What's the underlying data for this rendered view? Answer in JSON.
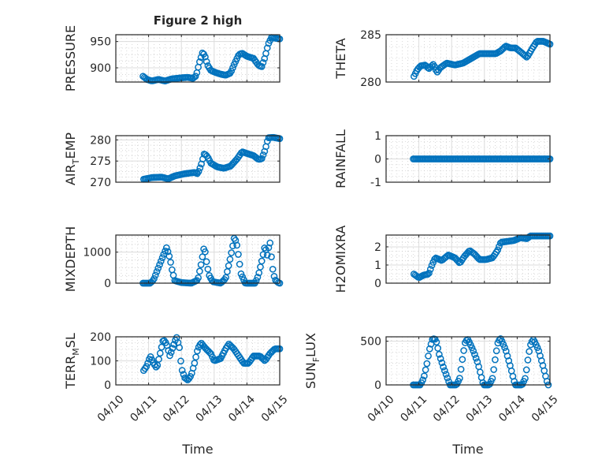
{
  "figure_title": "Figure 2 high",
  "chart_data": [
    {
      "type": "scatter",
      "ylabel": "PRESSURE",
      "title": "Figure 2 high",
      "xlabel": "",
      "ylim": [
        873,
        963
      ],
      "yticks": [
        900,
        950
      ],
      "xlim": [
        0,
        5
      ],
      "xtick_labels": [
        "04/10",
        "04/11",
        "04/12",
        "04/13",
        "04/14",
        "04/15"
      ],
      "grid": true,
      "keypoints": [
        [
          0.83,
          884
        ],
        [
          0.95,
          878
        ],
        [
          1.1,
          875
        ],
        [
          1.3,
          878
        ],
        [
          1.5,
          875
        ],
        [
          1.7,
          879
        ],
        [
          2.0,
          881
        ],
        [
          2.2,
          882
        ],
        [
          2.35,
          880
        ],
        [
          2.45,
          885
        ],
        [
          2.55,
          910
        ],
        [
          2.65,
          930
        ],
        [
          2.72,
          922
        ],
        [
          2.8,
          905
        ],
        [
          2.9,
          895
        ],
        [
          3.05,
          891
        ],
        [
          3.2,
          888
        ],
        [
          3.35,
          886
        ],
        [
          3.5,
          890
        ],
        [
          3.6,
          905
        ],
        [
          3.75,
          925
        ],
        [
          3.85,
          928
        ],
        [
          4.0,
          922
        ],
        [
          4.2,
          918
        ],
        [
          4.35,
          905
        ],
        [
          4.45,
          902
        ],
        [
          4.55,
          920
        ],
        [
          4.65,
          945
        ],
        [
          4.75,
          958
        ],
        [
          4.9,
          956
        ],
        [
          5.0,
          955
        ]
      ]
    },
    {
      "type": "scatter",
      "ylabel": "THETA",
      "ylim": [
        280,
        285
      ],
      "yticks": [
        280,
        285
      ],
      "xlim": [
        0,
        5
      ],
      "xtick_labels": [
        "04/10",
        "04/11",
        "04/12",
        "04/13",
        "04/14",
        "04/15"
      ],
      "grid": true,
      "keypoints": [
        [
          0.85,
          280.6
        ],
        [
          0.95,
          281.3
        ],
        [
          1.05,
          281.7
        ],
        [
          1.2,
          281.8
        ],
        [
          1.3,
          281.4
        ],
        [
          1.45,
          281.9
        ],
        [
          1.55,
          281.0
        ],
        [
          1.65,
          281.5
        ],
        [
          1.85,
          282.0
        ],
        [
          2.1,
          281.8
        ],
        [
          2.35,
          282.0
        ],
        [
          2.6,
          282.5
        ],
        [
          2.85,
          283.0
        ],
        [
          3.1,
          283.0
        ],
        [
          3.35,
          283.0
        ],
        [
          3.5,
          283.3
        ],
        [
          3.65,
          283.8
        ],
        [
          3.8,
          283.6
        ],
        [
          3.95,
          283.6
        ],
        [
          4.1,
          283.2
        ],
        [
          4.3,
          282.6
        ],
        [
          4.45,
          283.5
        ],
        [
          4.6,
          284.3
        ],
        [
          4.8,
          284.3
        ],
        [
          5.0,
          284.0
        ]
      ]
    },
    {
      "type": "scatter",
      "ylabel": "AIR_TEMP",
      "ylabel_main": "AIR",
      "ylabel_sub": "T",
      "ylabel_rest": "EMP",
      "ylim": [
        270,
        281
      ],
      "yticks": [
        270,
        275,
        280
      ],
      "xlim": [
        0,
        5
      ],
      "xtick_labels": [
        "04/10",
        "04/11",
        "04/12",
        "04/13",
        "04/14",
        "04/15"
      ],
      "grid": true,
      "keypoints": [
        [
          0.85,
          270.7
        ],
        [
          1.1,
          271.1
        ],
        [
          1.4,
          271.2
        ],
        [
          1.6,
          270.8
        ],
        [
          1.8,
          271.5
        ],
        [
          2.1,
          272.0
        ],
        [
          2.4,
          272.3
        ],
        [
          2.5,
          272.0
        ],
        [
          2.6,
          274.0
        ],
        [
          2.7,
          276.8
        ],
        [
          2.8,
          276.0
        ],
        [
          2.9,
          274.5
        ],
        [
          3.1,
          273.6
        ],
        [
          3.3,
          273.3
        ],
        [
          3.5,
          273.8
        ],
        [
          3.7,
          275.5
        ],
        [
          3.85,
          277.2
        ],
        [
          4.0,
          276.8
        ],
        [
          4.2,
          276.3
        ],
        [
          4.35,
          275.4
        ],
        [
          4.45,
          275.5
        ],
        [
          4.55,
          277.5
        ],
        [
          4.65,
          280.5
        ],
        [
          4.8,
          280.6
        ],
        [
          5.0,
          280.3
        ]
      ]
    },
    {
      "type": "scatter",
      "ylabel": "RAINFALL",
      "ylim": [
        -1,
        1
      ],
      "yticks": [
        -1,
        0,
        1
      ],
      "xlim": [
        0,
        5
      ],
      "xtick_labels": [
        "04/10",
        "04/11",
        "04/12",
        "04/13",
        "04/14",
        "04/15"
      ],
      "grid": true,
      "keypoints": [
        [
          0.83,
          0
        ],
        [
          5.0,
          0
        ]
      ]
    },
    {
      "type": "scatter",
      "ylabel": "MIXDEPTH",
      "ylim": [
        0,
        1550
      ],
      "yticks": [
        0,
        1000
      ],
      "xlim": [
        0,
        5
      ],
      "xtick_labels": [
        "04/10",
        "04/11",
        "04/12",
        "04/13",
        "04/14",
        "04/15"
      ],
      "grid": true,
      "keypoints": [
        [
          0.83,
          0
        ],
        [
          1.05,
          0
        ],
        [
          1.15,
          100
        ],
        [
          1.3,
          500
        ],
        [
          1.45,
          900
        ],
        [
          1.55,
          1150
        ],
        [
          1.65,
          800
        ],
        [
          1.72,
          400
        ],
        [
          1.8,
          80
        ],
        [
          2.0,
          20
        ],
        [
          2.3,
          0
        ],
        [
          2.5,
          100
        ],
        [
          2.6,
          600
        ],
        [
          2.7,
          1200
        ],
        [
          2.78,
          600
        ],
        [
          2.85,
          250
        ],
        [
          2.95,
          50
        ],
        [
          3.2,
          0
        ],
        [
          3.35,
          150
        ],
        [
          3.45,
          600
        ],
        [
          3.55,
          1100
        ],
        [
          3.62,
          1500
        ],
        [
          3.7,
          1200
        ],
        [
          3.78,
          600
        ],
        [
          3.82,
          300
        ],
        [
          3.95,
          0
        ],
        [
          4.25,
          0
        ],
        [
          4.35,
          250
        ],
        [
          4.45,
          700
        ],
        [
          4.55,
          1200
        ],
        [
          4.62,
          900
        ],
        [
          4.7,
          1350
        ],
        [
          4.78,
          500
        ],
        [
          4.85,
          120
        ],
        [
          4.95,
          20
        ],
        [
          5.0,
          0
        ]
      ]
    },
    {
      "type": "scatter",
      "ylabel": "H2OMIXRA",
      "ylim": [
        0,
        2.65
      ],
      "yticks": [
        0,
        1,
        2
      ],
      "xlim": [
        0,
        5
      ],
      "xtick_labels": [
        "04/10",
        "04/11",
        "04/12",
        "04/13",
        "04/14",
        "04/15"
      ],
      "grid": true,
      "keypoints": [
        [
          0.85,
          0.5
        ],
        [
          1.0,
          0.3
        ],
        [
          1.15,
          0.45
        ],
        [
          1.3,
          0.5
        ],
        [
          1.4,
          1.0
        ],
        [
          1.5,
          1.4
        ],
        [
          1.7,
          1.25
        ],
        [
          1.9,
          1.55
        ],
        [
          2.1,
          1.4
        ],
        [
          2.25,
          1.1
        ],
        [
          2.4,
          1.5
        ],
        [
          2.55,
          1.8
        ],
        [
          2.7,
          1.6
        ],
        [
          2.85,
          1.3
        ],
        [
          3.05,
          1.3
        ],
        [
          3.25,
          1.4
        ],
        [
          3.4,
          1.8
        ],
        [
          3.5,
          2.25
        ],
        [
          3.7,
          2.3
        ],
        [
          3.9,
          2.35
        ],
        [
          4.1,
          2.5
        ],
        [
          4.3,
          2.45
        ],
        [
          4.4,
          2.6
        ],
        [
          4.6,
          2.6
        ],
        [
          5.0,
          2.6
        ]
      ]
    },
    {
      "type": "scatter",
      "ylabel": "TERR_MSL",
      "ylabel_main": "TERR",
      "ylabel_sub": "M",
      "ylabel_rest": "SL",
      "ylim": [
        0,
        200
      ],
      "yticks": [
        0,
        100,
        200
      ],
      "xlim": [
        0,
        5
      ],
      "xtick_labels": [
        "04/10",
        "04/11",
        "04/12",
        "04/13",
        "04/14",
        "04/15"
      ],
      "grid": true,
      "keypoints": [
        [
          0.85,
          60
        ],
        [
          0.95,
          80
        ],
        [
          1.05,
          120
        ],
        [
          1.15,
          90
        ],
        [
          1.25,
          70
        ],
        [
          1.35,
          130
        ],
        [
          1.45,
          190
        ],
        [
          1.55,
          170
        ],
        [
          1.65,
          120
        ],
        [
          1.75,
          160
        ],
        [
          1.85,
          200
        ],
        [
          1.95,
          150
        ],
        [
          2.0,
          70
        ],
        [
          2.1,
          30
        ],
        [
          2.2,
          20
        ],
        [
          2.3,
          40
        ],
        [
          2.4,
          90
        ],
        [
          2.5,
          150
        ],
        [
          2.6,
          175
        ],
        [
          2.75,
          150
        ],
        [
          2.9,
          130
        ],
        [
          3.0,
          100
        ],
        [
          3.2,
          110
        ],
        [
          3.35,
          150
        ],
        [
          3.45,
          170
        ],
        [
          3.6,
          150
        ],
        [
          3.75,
          120
        ],
        [
          3.9,
          90
        ],
        [
          4.05,
          90
        ],
        [
          4.2,
          120
        ],
        [
          4.4,
          120
        ],
        [
          4.55,
          100
        ],
        [
          4.7,
          130
        ],
        [
          4.85,
          150
        ],
        [
          5.0,
          150
        ]
      ]
    },
    {
      "type": "scatter",
      "ylabel": "SUN_FLUX",
      "ylabel_main": "SUN",
      "ylabel_sub": "F",
      "ylabel_rest": "LUX",
      "ylim": [
        0,
        550
      ],
      "yticks": [
        0,
        500
      ],
      "xlim": [
        0,
        5
      ],
      "xtick_labels": [
        "04/10",
        "04/11",
        "04/12",
        "04/13",
        "04/14",
        "04/15"
      ],
      "grid": true,
      "keypoints": [
        [
          0.83,
          0
        ],
        [
          1.05,
          0
        ],
        [
          1.15,
          80
        ],
        [
          1.25,
          250
        ],
        [
          1.32,
          400
        ],
        [
          1.42,
          530
        ],
        [
          1.52,
          520
        ],
        [
          1.62,
          350
        ],
        [
          1.75,
          200
        ],
        [
          1.85,
          100
        ],
        [
          1.95,
          0
        ],
        [
          2.15,
          0
        ],
        [
          2.25,
          80
        ],
        [
          2.35,
          350
        ],
        [
          2.42,
          500
        ],
        [
          2.5,
          520
        ],
        [
          2.65,
          400
        ],
        [
          2.8,
          250
        ],
        [
          2.9,
          100
        ],
        [
          2.97,
          0
        ],
        [
          3.15,
          0
        ],
        [
          3.25,
          80
        ],
        [
          3.35,
          350
        ],
        [
          3.42,
          500
        ],
        [
          3.5,
          530
        ],
        [
          3.65,
          400
        ],
        [
          3.8,
          200
        ],
        [
          3.9,
          50
        ],
        [
          3.95,
          0
        ],
        [
          4.15,
          0
        ],
        [
          4.25,
          80
        ],
        [
          4.35,
          350
        ],
        [
          4.42,
          480
        ],
        [
          4.5,
          520
        ],
        [
          4.65,
          400
        ],
        [
          4.8,
          200
        ],
        [
          4.9,
          50
        ],
        [
          4.95,
          0
        ]
      ]
    }
  ],
  "xlabels": [
    "Time",
    "Time"
  ]
}
